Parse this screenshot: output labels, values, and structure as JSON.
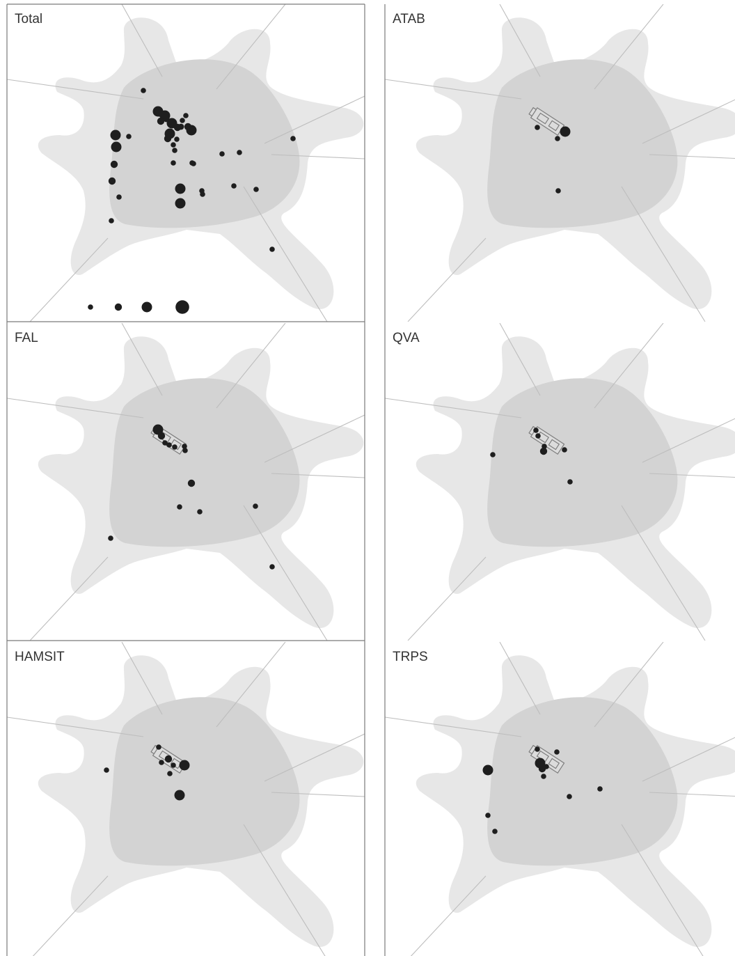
{
  "colors": {
    "outer_zone": "#e7e7e7",
    "inner_zone": "#d3d3d3",
    "points": "#1e1e1e",
    "frame": "#7a7a7a",
    "label": "#333333"
  },
  "legend": {
    "sizes": [
      1,
      2,
      3,
      4
    ]
  },
  "panels": [
    {
      "label": "Total",
      "building": false,
      "points": [
        [
          196,
          124,
          1
        ],
        [
          217,
          154,
          3
        ],
        [
          227,
          160,
          3
        ],
        [
          221,
          168,
          2
        ],
        [
          237,
          171,
          3
        ],
        [
          245,
          177,
          2
        ],
        [
          257,
          160,
          1
        ],
        [
          252,
          167,
          1
        ],
        [
          260,
          176,
          2
        ],
        [
          265,
          181,
          3
        ],
        [
          234,
          186,
          3
        ],
        [
          231,
          193,
          2
        ],
        [
          244,
          194,
          1
        ],
        [
          239,
          202,
          1
        ],
        [
          156,
          188,
          3
        ],
        [
          157,
          205,
          3
        ],
        [
          175,
          190,
          1
        ],
        [
          154,
          230,
          2
        ],
        [
          151,
          254,
          2
        ],
        [
          161,
          277,
          1
        ],
        [
          150,
          311,
          1
        ],
        [
          241,
          210,
          1
        ],
        [
          239,
          228,
          1
        ],
        [
          266,
          228,
          1
        ],
        [
          268,
          229,
          1
        ],
        [
          249,
          265,
          3
        ],
        [
          249,
          286,
          3
        ],
        [
          280,
          268,
          1
        ],
        [
          281,
          273,
          1
        ],
        [
          309,
          215,
          1
        ],
        [
          334,
          213,
          1
        ],
        [
          326,
          261,
          1
        ],
        [
          358,
          266,
          1
        ],
        [
          411,
          193,
          1
        ],
        [
          381,
          352,
          1
        ]
      ]
    },
    {
      "label": "ATAB",
      "building": true,
      "points": [
        [
          219,
          177,
          1
        ],
        [
          259,
          183,
          3
        ],
        [
          248,
          193,
          1
        ],
        [
          249,
          268,
          1
        ]
      ]
    },
    {
      "label": "FAL",
      "building": true,
      "points": [
        [
          217,
          153,
          3
        ],
        [
          222,
          162,
          2
        ],
        [
          227,
          172,
          1
        ],
        [
          233,
          175,
          1
        ],
        [
          241,
          178,
          1
        ],
        [
          255,
          177,
          1
        ],
        [
          256,
          183,
          1
        ],
        [
          265,
          230,
          2
        ],
        [
          248,
          264,
          1
        ],
        [
          277,
          271,
          1
        ],
        [
          357,
          263,
          1
        ],
        [
          149,
          309,
          1
        ],
        [
          381,
          350,
          1
        ]
      ]
    },
    {
      "label": "QVA",
      "building": true,
      "points": [
        [
          217,
          154,
          1
        ],
        [
          220,
          162,
          1
        ],
        [
          229,
          177,
          1
        ],
        [
          228,
          184,
          2
        ],
        [
          258,
          182,
          1
        ],
        [
          266,
          228,
          1
        ],
        [
          155,
          189,
          1
        ]
      ]
    },
    {
      "label": "HAMSIT",
      "building": true,
      "points": [
        [
          218,
          151,
          1
        ],
        [
          232,
          168,
          2
        ],
        [
          222,
          173,
          1
        ],
        [
          239,
          177,
          1
        ],
        [
          234,
          189,
          1
        ],
        [
          255,
          177,
          3
        ],
        [
          143,
          184,
          1
        ],
        [
          248,
          220,
          3
        ]
      ]
    },
    {
      "label": "TRPS",
      "building": true,
      "points": [
        [
          219,
          154,
          1
        ],
        [
          223,
          174,
          3
        ],
        [
          226,
          182,
          2
        ],
        [
          232,
          179,
          1
        ],
        [
          247,
          158,
          1
        ],
        [
          228,
          193,
          1
        ],
        [
          148,
          184,
          3
        ],
        [
          265,
          222,
          1
        ],
        [
          309,
          211,
          1
        ],
        [
          148,
          249,
          1
        ],
        [
          158,
          272,
          1
        ]
      ]
    }
  ]
}
